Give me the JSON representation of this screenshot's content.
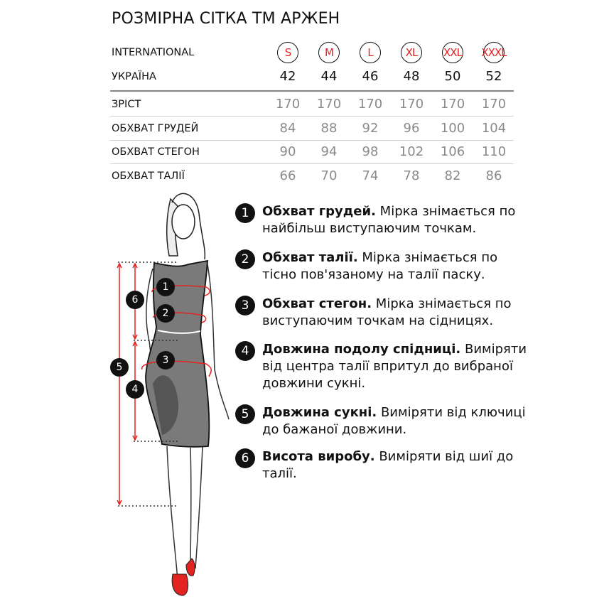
{
  "title": "РОЗМІРНА СІТКА ТМ АРЖЕН",
  "table": {
    "international_label": "INTERNATIONAL",
    "international": [
      "S",
      "M",
      "L",
      "XL",
      "XXL",
      "XXXL"
    ],
    "ukraine_label": "УКРАЇНА",
    "ukraine": [
      "42",
      "44",
      "46",
      "48",
      "50",
      "52"
    ],
    "rows": [
      {
        "label": "ЗРІСТ",
        "values": [
          "170",
          "170",
          "170",
          "170",
          "170",
          "170"
        ]
      },
      {
        "label": "ОБХВАТ ГРУДЕЙ",
        "values": [
          "84",
          "88",
          "92",
          "96",
          "100",
          "104"
        ]
      },
      {
        "label": "ОБХВАТ СТЕГОН",
        "values": [
          "90",
          "94",
          "98",
          "102",
          "106",
          "110"
        ]
      },
      {
        "label": "ОБХВАТ ТАЛІЇ",
        "values": [
          "66",
          "70",
          "74",
          "78",
          "82",
          "86"
        ]
      }
    ]
  },
  "legend": [
    {
      "num": "1",
      "bold": "Обхват грудей.",
      "text": " Мірка знімається по найбільш виступаючим точкам."
    },
    {
      "num": "2",
      "bold": "Обхват талії.",
      "text": " Мірка знімається по тісно пов'язаному на талії паску."
    },
    {
      "num": "3",
      "bold": "Обхват стегон.",
      "text": " Мірка знімається по виступаючим точкам на сідницях."
    },
    {
      "num": "4",
      "bold": "Довжина подолу спідниці.",
      "text": " Виміряти від центра талії впритул до вибраної довжини сукні."
    },
    {
      "num": "5",
      "bold": "Довжина сукні.",
      "text": " Виміряти від ключиці до бажаної довжини."
    },
    {
      "num": "6",
      "bold": "Висота виробу.",
      "text": " Виміряти від шиї до талії."
    }
  ],
  "figure_markers": [
    "1",
    "2",
    "3",
    "4",
    "5",
    "6"
  ],
  "colors": {
    "accent": "#e32222",
    "dress": "#7a7a7a",
    "text": "#111111",
    "muted": "#8a8a8a"
  }
}
